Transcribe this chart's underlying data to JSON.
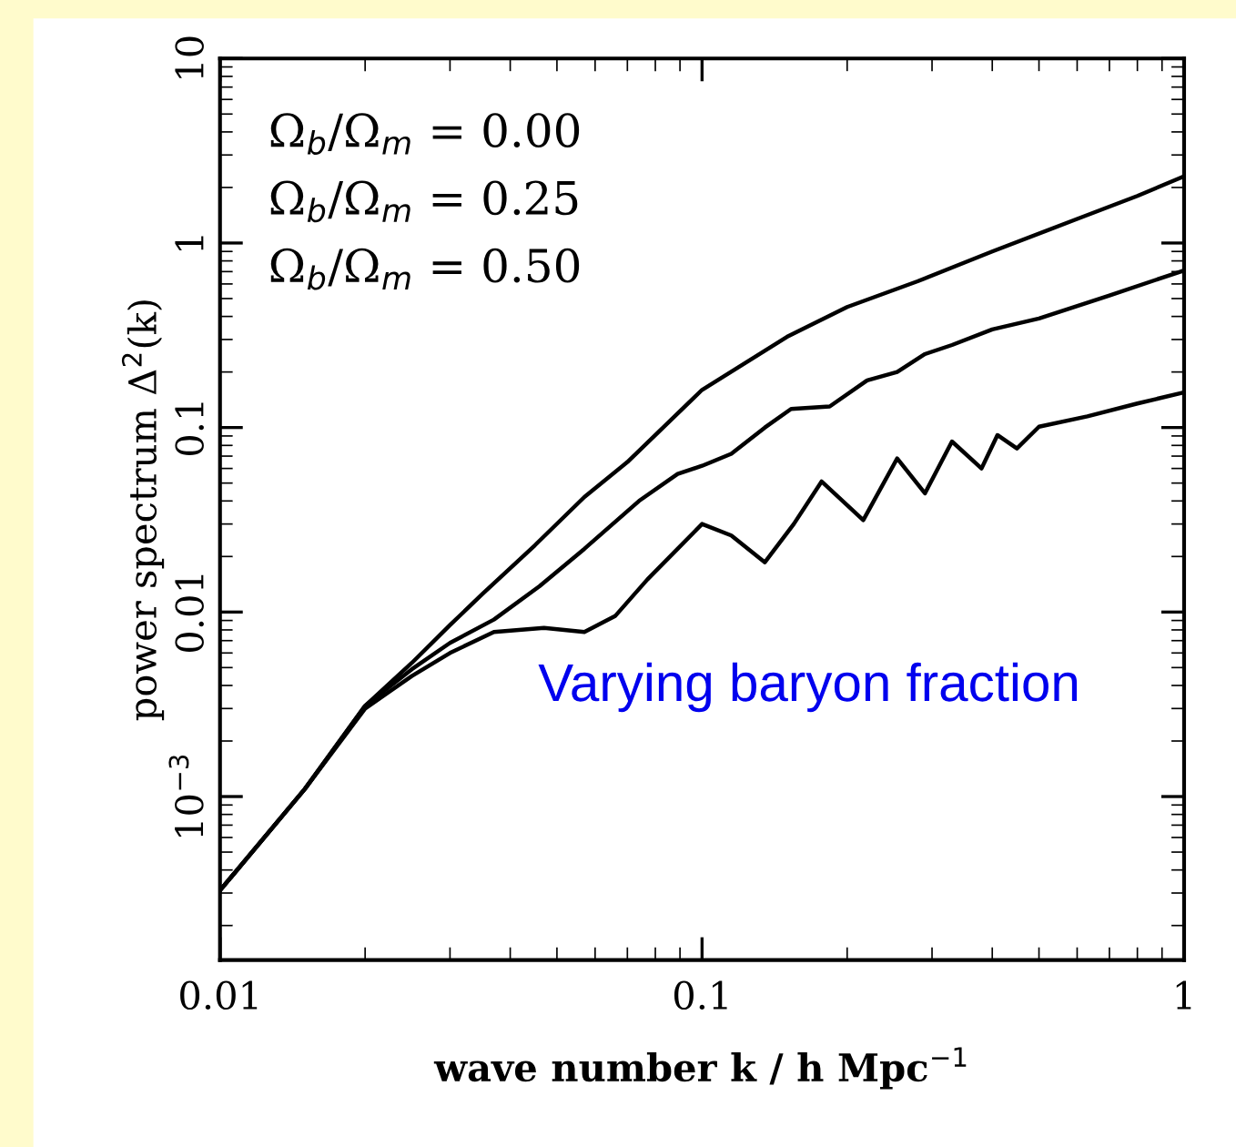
{
  "chart_data": {
    "type": "line",
    "xlabel": "wave number k / h Mpc$^{−1}$",
    "ylabel": "power spectrum Δ$^{2}$(k)",
    "log": "xy",
    "xlim": [
      0.01,
      1
    ],
    "ylim": [
      0.00013,
      10
    ],
    "xticks": [
      0.01,
      0.1,
      1
    ],
    "yticks": [
      {
        "value": 0.001,
        "label": "10$^{−3}$"
      },
      0.01,
      0.1,
      1,
      10
    ],
    "grid": false,
    "legend": false,
    "marker": "none",
    "line_style": "solid",
    "annotations": [
      "Ω$_{b}$/Ω$_{m}$ = 0.00",
      "Ω$_{b}$/Ω$_{m}$ = 0.25",
      "Ω$_{b}$/Ω$_{m}$ = 0.50",
      "Varying baryon fraction"
    ],
    "series": [
      {
        "color": "#000000",
        "x": [
          0.01,
          0.015,
          0.02,
          0.025,
          0.03,
          0.035,
          0.045,
          0.057,
          0.07,
          0.1,
          0.15,
          0.2,
          0.28,
          0.4,
          0.6,
          0.8,
          1.0
        ],
        "values": [
          0.00031,
          0.0011,
          0.0031,
          0.0053,
          0.0085,
          0.0125,
          0.023,
          0.042,
          0.065,
          0.16,
          0.31,
          0.45,
          0.62,
          0.9,
          1.35,
          1.8,
          2.3
        ]
      },
      {
        "color": "#000000",
        "x": [
          0.01,
          0.015,
          0.02,
          0.025,
          0.03,
          0.037,
          0.046,
          0.057,
          0.074,
          0.089,
          0.1,
          0.115,
          0.135,
          0.153,
          0.184,
          0.22,
          0.254,
          0.29,
          0.33,
          0.4,
          0.5,
          0.7,
          1.0
        ],
        "values": [
          0.00031,
          0.0011,
          0.0031,
          0.0049,
          0.0068,
          0.0091,
          0.0138,
          0.022,
          0.04,
          0.056,
          0.062,
          0.072,
          0.1,
          0.126,
          0.13,
          0.18,
          0.2,
          0.25,
          0.28,
          0.34,
          0.39,
          0.52,
          0.71
        ]
      },
      {
        "color": "#000000",
        "x": [
          0.01,
          0.015,
          0.02,
          0.025,
          0.03,
          0.037,
          0.047,
          0.057,
          0.066,
          0.077,
          0.089,
          0.1,
          0.115,
          0.135,
          0.155,
          0.177,
          0.216,
          0.254,
          0.29,
          0.33,
          0.38,
          0.41,
          0.45,
          0.5,
          0.63,
          0.8,
          1.0
        ],
        "values": [
          0.00031,
          0.0011,
          0.003,
          0.0045,
          0.006,
          0.0078,
          0.0082,
          0.0078,
          0.0095,
          0.015,
          0.022,
          0.03,
          0.026,
          0.0186,
          0.03,
          0.051,
          0.0315,
          0.068,
          0.044,
          0.084,
          0.06,
          0.091,
          0.077,
          0.101,
          0.115,
          0.135,
          0.155
        ]
      }
    ]
  }
}
